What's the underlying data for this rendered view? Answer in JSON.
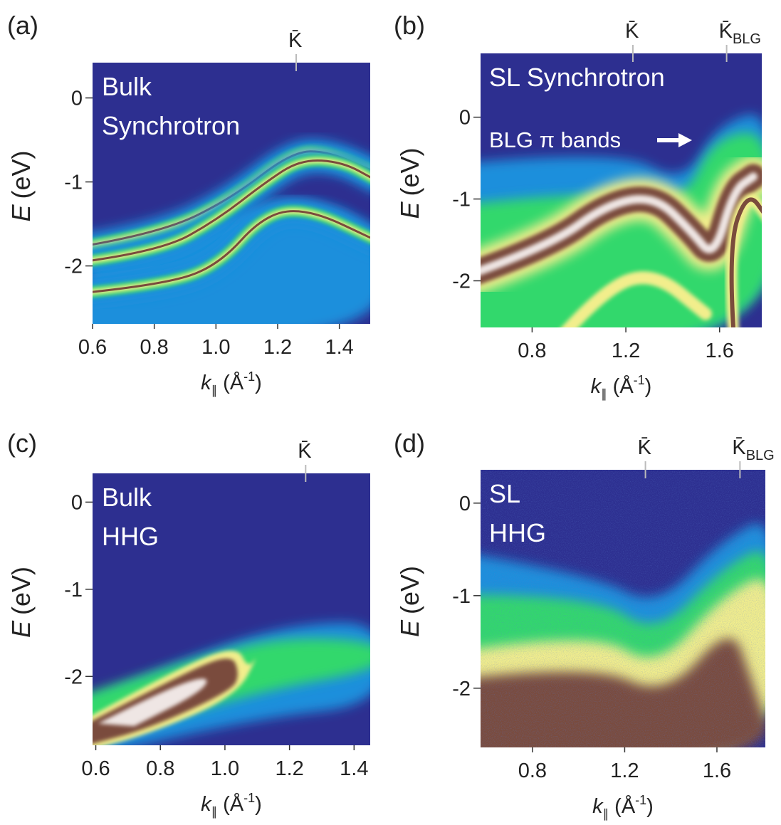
{
  "chart_data": [
    {
      "type": "heatmap",
      "panel_label": "(a)",
      "title": [
        "Bulk",
        "Synchrotron"
      ],
      "xlabel": [
        "k",
        "∥",
        "(Å",
        "-1",
        ")"
      ],
      "ylabel": [
        "E",
        "(eV)"
      ],
      "xlim": [
        0.6,
        1.5
      ],
      "ylim": [
        -2.69,
        0.42
      ],
      "xticks": [
        0.6,
        0.8,
        {
          "value": 1,
          "label": "1.0"
        },
        1.2,
        1.4
      ],
      "yticks": [
        0,
        -1,
        -2
      ],
      "markers": [
        {
          "label": "K̄",
          "x": 1.26
        }
      ]
    },
    {
      "type": "heatmap",
      "panel_label": "(b)",
      "title": [
        "SL Synchrotron"
      ],
      "xlabel": [
        "k",
        "∥",
        "(Å",
        "-1",
        ")"
      ],
      "ylabel": [
        "E",
        "(eV)"
      ],
      "xlim": [
        0.58,
        1.78
      ],
      "ylim": [
        -2.57,
        0.78
      ],
      "xticks": [
        0.8,
        1.2,
        1.6
      ],
      "yticks": [
        0,
        -1,
        -2
      ],
      "annotation": "BLG π bands",
      "markers": [
        {
          "label": "K̄",
          "x": 1.23
        },
        {
          "label": "K̄",
          "sub": "BLG",
          "x": 1.63
        }
      ]
    },
    {
      "type": "heatmap",
      "panel_label": "(c)",
      "title": [
        "Bulk",
        "HHG"
      ],
      "xlabel": [
        "k",
        "∥",
        "(Å",
        "-1",
        ")"
      ],
      "ylabel": [
        "E",
        "(eV)"
      ],
      "xlim": [
        0.59,
        1.45
      ],
      "ylim": [
        -2.79,
        0.33
      ],
      "xticks": [
        0.6,
        0.8,
        {
          "value": 1,
          "label": "1.0"
        },
        1.2,
        1.4
      ],
      "yticks": [
        0,
        -1,
        -2
      ],
      "markers": [
        {
          "label": "K̄",
          "x": 1.25
        }
      ]
    },
    {
      "type": "heatmap",
      "panel_label": "(d)",
      "title": [
        "SL",
        "HHG"
      ],
      "xlabel": [
        "k",
        "∥",
        "(Å",
        "-1",
        ")"
      ],
      "ylabel": [
        "E",
        "(eV)"
      ],
      "xlim": [
        0.575,
        1.81
      ],
      "ylim": [
        -2.64,
        0.36
      ],
      "xticks": [
        0.8,
        1.2,
        1.6
      ],
      "yticks": [
        0,
        -1,
        -2
      ],
      "markers": [
        {
          "label": "K̄",
          "x": 1.29
        },
        {
          "label": "K̄",
          "sub": "BLG",
          "x": 1.7
        }
      ]
    }
  ]
}
